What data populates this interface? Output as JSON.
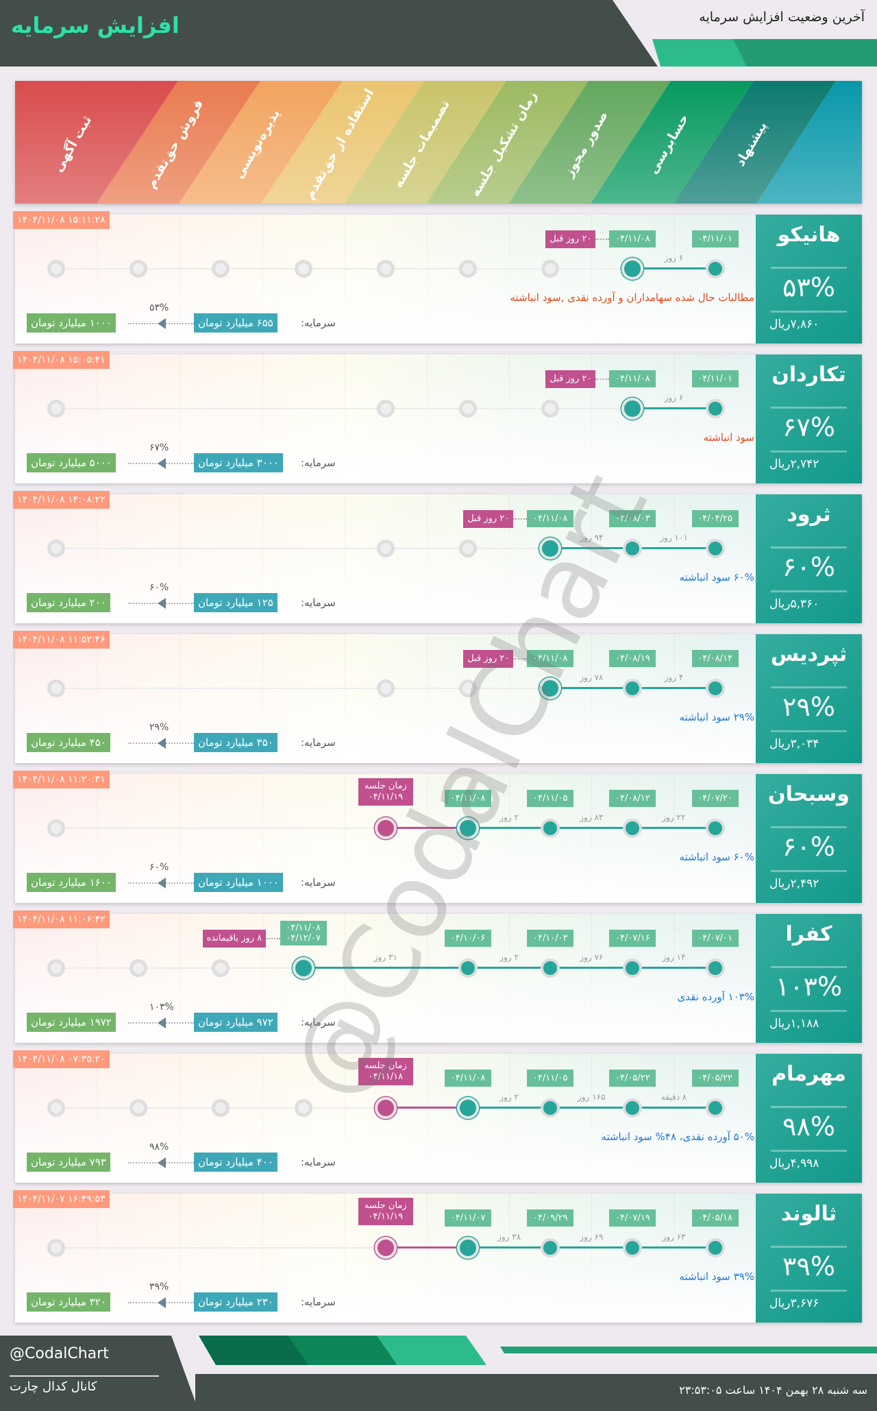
{
  "header": {
    "title": "افزایش سرمایه",
    "subtitle": "آخرین وضعیت افزایش سرمایه"
  },
  "stages": {
    "labels": [
      "ثبت آگهی",
      "فروش حق‌تقدم",
      "پذیره‌نویسی",
      "استفاده از حق‌تقدم",
      "تصمیمات جلسه",
      "زمان تشکیل جلسه",
      "صدور مجوز",
      "حسابرسی",
      "پیشنهاد",
      ""
    ],
    "colors": [
      "#d94c4c",
      "#e97b50",
      "#f2a45f",
      "#ebc56f",
      "#c9c46a",
      "#9cba62",
      "#63a85e",
      "#079a60",
      "#0b7a6f",
      "#0898aa"
    ]
  },
  "colors": {
    "done": "#26a69a",
    "meeting": "#c0508e",
    "date_box": "#66bf99",
    "timestamp": "#ff9a7c",
    "target": "#74b56a",
    "current_capital": "#3fa8b8",
    "desc_red": "#e04a1f",
    "desc_blue": "#1f78d1"
  },
  "capital_label": "سرمایه:",
  "rows": [
    {
      "name": "هانیکو",
      "pct": "۵۳%",
      "price": "۷,۸۶۰ریال",
      "timestamp": "۱۴۰۴/۱۱/۰۸ ۱۵:۱۱:۲۸",
      "description": "مطالبات حال شده سهامداران و آورده نقدی ,سود انباشته",
      "desc_color": "red",
      "cap_from": "۶۵۵ میلیارد تومان",
      "cap_to": "۱۰۰۰ میلیارد تومان",
      "cap_pct": "۵۳%",
      "stages": [
        {
          "col": 0,
          "state": "pending"
        },
        {
          "col": 1,
          "state": "pending"
        },
        {
          "col": 2,
          "state": "pending"
        },
        {
          "col": 3,
          "state": "pending"
        },
        {
          "col": 4,
          "state": "pending"
        },
        {
          "col": 5,
          "state": "pending"
        },
        {
          "col": 6,
          "state": "pending"
        },
        {
          "col": 7,
          "state": "current",
          "date": "۰۴/۱۱/۰۸"
        },
        {
          "col": 8,
          "state": "done",
          "date": "۰۴/۱۱/۰۱"
        }
      ],
      "gaps": [
        {
          "from": 8,
          "to": 7,
          "text": "۶ روز"
        }
      ],
      "badge": {
        "text": "۲۰ روز قبل"
      }
    },
    {
      "name": "تکاردان",
      "pct": "۶۷%",
      "price": "۲,۷۴۲ریال",
      "timestamp": "۱۴۰۴/۱۱/۰۸ ۱۵:۰۵:۴۱",
      "description": "سود انباشته",
      "desc_color": "red",
      "cap_from": "۳۰۰۰ میلیارد تومان",
      "cap_to": "۵۰۰۰ میلیارد تومان",
      "cap_pct": "۶۷%",
      "stages": [
        {
          "col": 0,
          "state": "pending"
        },
        {
          "col": 4,
          "state": "pending"
        },
        {
          "col": 5,
          "state": "pending"
        },
        {
          "col": 6,
          "state": "pending"
        },
        {
          "col": 7,
          "state": "current",
          "date": "۰۴/۱۱/۰۸"
        },
        {
          "col": 8,
          "state": "done",
          "date": "۰۴/۱۱/۰۱"
        }
      ],
      "gaps": [
        {
          "from": 8,
          "to": 7,
          "text": "۶ روز"
        }
      ],
      "badge": {
        "text": "۲۰ روز قبل"
      }
    },
    {
      "name": "ثرود",
      "pct": "۶۰%",
      "price": "۵,۳۶۰ریال",
      "timestamp": "۱۴۰۴/۱۱/۰۸ ۱۴:۰۸:۲۲",
      "description": "۶۰% سود انباشته",
      "desc_color": "blue",
      "cap_from": "۱۲۵ میلیارد تومان",
      "cap_to": "۲۰۰ میلیارد تومان",
      "cap_pct": "۶۰%",
      "stages": [
        {
          "col": 0,
          "state": "pending"
        },
        {
          "col": 4,
          "state": "pending"
        },
        {
          "col": 5,
          "state": "pending"
        },
        {
          "col": 6,
          "state": "current",
          "date": "۰۴/۱۱/۰۸"
        },
        {
          "col": 7,
          "state": "done",
          "date": "۰۴/۰۸/۰۳"
        },
        {
          "col": 8,
          "state": "done",
          "date": "۰۴/۰۴/۲۵"
        }
      ],
      "gaps": [
        {
          "from": 8,
          "to": 7,
          "text": "۱۰۱ روز"
        },
        {
          "from": 7,
          "to": 6,
          "text": "۹۴ روز"
        }
      ],
      "badge": {
        "text": "۲۰ روز قبل"
      }
    },
    {
      "name": "ثپردیس",
      "pct": "۲۹%",
      "price": "۳,۰۳۴ریال",
      "timestamp": "۱۴۰۴/۱۱/۰۸ ۱۱:۵۲:۴۶",
      "description": "۲۹% سود انباشته",
      "desc_color": "blue",
      "cap_from": "۳۵۰ میلیارد تومان",
      "cap_to": "۴۵۰ میلیارد تومان",
      "cap_pct": "۲۹%",
      "stages": [
        {
          "col": 0,
          "state": "pending"
        },
        {
          "col": 4,
          "state": "pending"
        },
        {
          "col": 5,
          "state": "pending"
        },
        {
          "col": 6,
          "state": "current",
          "date": "۰۴/۱۱/۰۸"
        },
        {
          "col": 7,
          "state": "done",
          "date": "۰۴/۰۸/۱۹"
        },
        {
          "col": 8,
          "state": "done",
          "date": "۰۴/۰۸/۱۴"
        }
      ],
      "gaps": [
        {
          "from": 8,
          "to": 7,
          "text": "۴ روز"
        },
        {
          "from": 7,
          "to": 6,
          "text": "۷۸ روز"
        }
      ],
      "badge": {
        "text": "۲۰ روز قبل"
      }
    },
    {
      "name": "وسبحان",
      "pct": "۶۰%",
      "price": "۲,۴۹۲ریال",
      "timestamp": "۱۴۰۴/۱۱/۰۸ ۱۱:۲۰:۳۱",
      "description": "۶۰% سود انباشته",
      "desc_color": "blue",
      "cap_from": "۱۰۰۰ میلیارد تومان",
      "cap_to": "۱۶۰۰ میلیارد تومان",
      "cap_pct": "۶۰%",
      "stages": [
        {
          "col": 0,
          "state": "pending"
        },
        {
          "col": 4,
          "state": "meeting",
          "label": "زمان جلسه",
          "date": "۰۴/۱۱/۱۹"
        },
        {
          "col": 5,
          "state": "current",
          "date": "۰۴/۱۱/۰۸"
        },
        {
          "col": 6,
          "state": "done",
          "date": "۰۴/۱۱/۰۵"
        },
        {
          "col": 7,
          "state": "done",
          "date": "۰۴/۰۸/۱۲"
        },
        {
          "col": 8,
          "state": "done",
          "date": "۰۴/۰۷/۲۰"
        }
      ],
      "gaps": [
        {
          "from": 8,
          "to": 7,
          "text": "۲۲ روز"
        },
        {
          "from": 7,
          "to": 6,
          "text": "۸۳ روز"
        },
        {
          "from": 6,
          "to": 5,
          "text": "۲ روز"
        }
      ]
    },
    {
      "name": "کفرا",
      "pct": "۱۰۳%",
      "price": "۱,۱۸۸ریال",
      "timestamp": "۱۴۰۴/۱۱/۰۸ ۱۱:۰۶:۴۲",
      "description": "۱۰۳% آورده نقدی",
      "desc_color": "blue",
      "cap_from": "۹۷۲ میلیارد تومان",
      "cap_to": "۱۹۷۲ میلیارد تومان",
      "cap_pct": "۱۰۳%",
      "stages": [
        {
          "col": 0,
          "state": "pending"
        },
        {
          "col": 1,
          "state": "pending"
        },
        {
          "col": 2,
          "state": "pending"
        },
        {
          "col": 3,
          "state": "current",
          "date": "۰۴/۱۱/۰۸",
          "date2": "۰۴/۱۲/۰۷"
        },
        {
          "col": 5,
          "state": "done",
          "date": "۰۴/۱۰/۰۶"
        },
        {
          "col": 6,
          "state": "done",
          "date": "۰۴/۱۰/۰۳"
        },
        {
          "col": 7,
          "state": "done",
          "date": "۰۴/۰۷/۱۶"
        },
        {
          "col": 8,
          "state": "done",
          "date": "۰۴/۰۷/۰۱"
        }
      ],
      "gaps": [
        {
          "from": 8,
          "to": 7,
          "text": "۱۴ روز"
        },
        {
          "from": 7,
          "to": 6,
          "text": "۷۶ روز"
        },
        {
          "from": 6,
          "to": 5,
          "text": "۲ روز"
        },
        {
          "from": 5,
          "to": 3,
          "text": "۳۱ روز"
        }
      ],
      "badge": {
        "text": "۸ روز باقیمانده"
      }
    },
    {
      "name": "مهرمام",
      "pct": "۹۸%",
      "price": "۴,۹۹۸ریال",
      "timestamp": "۱۴۰۴/۱۱/۰۸ ۰۷:۳۵:۲۰",
      "description": "۵۰% آورده نقدی، ۴۸% سود انباشته",
      "desc_color": "blue",
      "cap_from": "۴۰۰ میلیارد تومان",
      "cap_to": "۷۹۳ میلیارد تومان",
      "cap_pct": "۹۸%",
      "stages": [
        {
          "col": 0,
          "state": "pending"
        },
        {
          "col": 1,
          "state": "pending"
        },
        {
          "col": 2,
          "state": "pending"
        },
        {
          "col": 3,
          "state": "pending"
        },
        {
          "col": 4,
          "state": "meeting",
          "label": "زمان جلسه",
          "date": "۰۴/۱۱/۱۸"
        },
        {
          "col": 5,
          "state": "current",
          "date": "۰۴/۱۱/۰۸"
        },
        {
          "col": 6,
          "state": "done",
          "date": "۰۴/۱۱/۰۵"
        },
        {
          "col": 7,
          "state": "done",
          "date": "۰۴/۰۵/۲۲"
        },
        {
          "col": 8,
          "state": "done",
          "date": "۰۴/۰۵/۲۲"
        }
      ],
      "gaps": [
        {
          "from": 8,
          "to": 7,
          "text": "۸ دقیقه"
        },
        {
          "from": 7,
          "to": 6,
          "text": "۱۶۵ روز"
        },
        {
          "from": 6,
          "to": 5,
          "text": "۲ روز"
        }
      ]
    },
    {
      "name": "ثالوند",
      "pct": "۳۹%",
      "price": "۳,۶۷۶ریال",
      "timestamp": "۱۴۰۴/۱۱/۰۷ ۱۶:۴۹:۵۳",
      "description": "۳۹% سود انباشته",
      "desc_color": "blue",
      "cap_from": "۲۳۰ میلیارد تومان",
      "cap_to": "۳۲۰ میلیارد تومان",
      "cap_pct": "۳۹%",
      "stages": [
        {
          "col": 0,
          "state": "pending"
        },
        {
          "col": 4,
          "state": "meeting",
          "label": "زمان جلسه",
          "date": "۰۴/۱۱/۱۹"
        },
        {
          "col": 5,
          "state": "current",
          "date": "۰۴/۱۱/۰۷"
        },
        {
          "col": 6,
          "state": "done",
          "date": "۰۴/۰۹/۲۹"
        },
        {
          "col": 7,
          "state": "done",
          "date": "۰۴/۰۷/۱۹"
        },
        {
          "col": 8,
          "state": "done",
          "date": "۰۴/۰۵/۱۸"
        }
      ],
      "gaps": [
        {
          "from": 8,
          "to": 7,
          "text": "۶۳ روز"
        },
        {
          "from": 7,
          "to": 6,
          "text": "۶۹ روز"
        },
        {
          "from": 6,
          "to": 5,
          "text": "۳۸ روز"
        }
      ]
    }
  ],
  "watermark": "@CodalChart",
  "footer": {
    "handle": "@CodalChart",
    "channel": "کانال کدال چارت",
    "date": "سه شنبه ۲۸ بهمن ۱۴۰۴ ساعت ۲۳:۵۳:۰۵"
  }
}
